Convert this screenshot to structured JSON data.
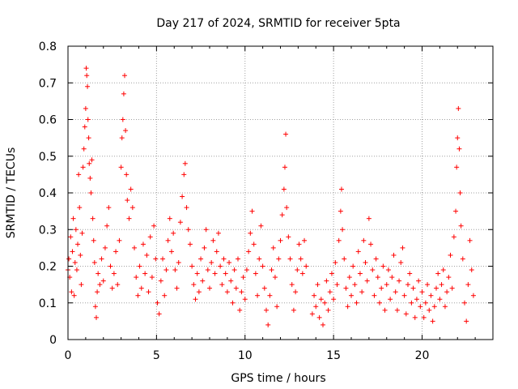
{
  "chart_data": {
    "type": "scatter",
    "title": "Day 217 of 2024, SRMTID for receiver 5pta",
    "xlabel": "GPS time / hours",
    "ylabel": "SRMTID / TECUs",
    "xlim": [
      0,
      24
    ],
    "ylim": [
      0,
      0.8
    ],
    "xticks": [
      0,
      5,
      10,
      15,
      20
    ],
    "xtick_labels": [
      "0",
      "5",
      "10",
      "15",
      "20"
    ],
    "yticks": [
      0,
      0.1,
      0.2,
      0.3,
      0.4,
      0.5,
      0.6,
      0.7,
      0.8
    ],
    "ytick_labels": [
      "0",
      "0.1",
      "0.2",
      "0.3",
      "0.4",
      "0.5",
      "0.6",
      "0.7",
      "0.8"
    ],
    "grid": true,
    "marker": "+",
    "color": "#ff0000",
    "series": [
      {
        "name": "SRMTID",
        "points": [
          [
            0.0,
            0.19
          ],
          [
            0.05,
            0.22
          ],
          [
            0.1,
            0.17
          ],
          [
            0.15,
            0.28
          ],
          [
            0.2,
            0.13
          ],
          [
            0.25,
            0.24
          ],
          [
            0.3,
            0.33
          ],
          [
            0.35,
            0.12
          ],
          [
            0.4,
            0.21
          ],
          [
            0.45,
            0.3
          ],
          [
            0.5,
            0.19
          ],
          [
            0.55,
            0.26
          ],
          [
            0.6,
            0.45
          ],
          [
            0.65,
            0.36
          ],
          [
            0.7,
            0.23
          ],
          [
            0.75,
            0.15
          ],
          [
            0.8,
            0.29
          ],
          [
            0.85,
            0.47
          ],
          [
            0.9,
            0.52
          ],
          [
            0.95,
            0.58
          ],
          [
            1.0,
            0.63
          ],
          [
            1.03,
            0.74
          ],
          [
            1.06,
            0.72
          ],
          [
            1.1,
            0.69
          ],
          [
            1.13,
            0.6
          ],
          [
            1.17,
            0.55
          ],
          [
            1.2,
            0.48
          ],
          [
            1.25,
            0.44
          ],
          [
            1.3,
            0.4
          ],
          [
            1.35,
            0.49
          ],
          [
            1.4,
            0.33
          ],
          [
            1.45,
            0.27
          ],
          [
            1.5,
            0.21
          ],
          [
            1.55,
            0.09
          ],
          [
            1.6,
            0.06
          ],
          [
            1.65,
            0.13
          ],
          [
            1.7,
            0.18
          ],
          [
            1.8,
            0.15
          ],
          [
            1.9,
            0.22
          ],
          [
            2.0,
            0.16
          ],
          [
            2.1,
            0.25
          ],
          [
            2.2,
            0.31
          ],
          [
            2.3,
            0.36
          ],
          [
            2.4,
            0.2
          ],
          [
            2.5,
            0.14
          ],
          [
            2.6,
            0.18
          ],
          [
            2.7,
            0.24
          ],
          [
            2.8,
            0.15
          ],
          [
            2.9,
            0.27
          ],
          [
            3.0,
            0.47
          ],
          [
            3.05,
            0.55
          ],
          [
            3.1,
            0.6
          ],
          [
            3.15,
            0.67
          ],
          [
            3.2,
            0.72
          ],
          [
            3.25,
            0.57
          ],
          [
            3.3,
            0.45
          ],
          [
            3.35,
            0.38
          ],
          [
            3.45,
            0.33
          ],
          [
            3.55,
            0.41
          ],
          [
            3.65,
            0.36
          ],
          [
            3.75,
            0.25
          ],
          [
            3.85,
            0.17
          ],
          [
            3.95,
            0.12
          ],
          [
            4.05,
            0.2
          ],
          [
            4.15,
            0.14
          ],
          [
            4.25,
            0.26
          ],
          [
            4.35,
            0.18
          ],
          [
            4.45,
            0.23
          ],
          [
            4.55,
            0.13
          ],
          [
            4.65,
            0.28
          ],
          [
            4.75,
            0.17
          ],
          [
            4.85,
            0.31
          ],
          [
            4.95,
            0.22
          ],
          [
            5.05,
            0.1
          ],
          [
            5.15,
            0.07
          ],
          [
            5.25,
            0.16
          ],
          [
            5.35,
            0.22
          ],
          [
            5.45,
            0.12
          ],
          [
            5.55,
            0.19
          ],
          [
            5.65,
            0.27
          ],
          [
            5.75,
            0.33
          ],
          [
            5.85,
            0.24
          ],
          [
            5.95,
            0.29
          ],
          [
            6.05,
            0.19
          ],
          [
            6.15,
            0.14
          ],
          [
            6.25,
            0.21
          ],
          [
            6.35,
            0.32
          ],
          [
            6.45,
            0.39
          ],
          [
            6.55,
            0.45
          ],
          [
            6.62,
            0.48
          ],
          [
            6.7,
            0.36
          ],
          [
            6.8,
            0.3
          ],
          [
            6.9,
            0.26
          ],
          [
            7.0,
            0.2
          ],
          [
            7.1,
            0.15
          ],
          [
            7.2,
            0.11
          ],
          [
            7.3,
            0.18
          ],
          [
            7.4,
            0.13
          ],
          [
            7.5,
            0.22
          ],
          [
            7.6,
            0.16
          ],
          [
            7.7,
            0.25
          ],
          [
            7.8,
            0.3
          ],
          [
            7.9,
            0.19
          ],
          [
            8.0,
            0.14
          ],
          [
            8.1,
            0.21
          ],
          [
            8.2,
            0.27
          ],
          [
            8.3,
            0.18
          ],
          [
            8.4,
            0.24
          ],
          [
            8.5,
            0.29
          ],
          [
            8.6,
            0.2
          ],
          [
            8.7,
            0.15
          ],
          [
            8.8,
            0.22
          ],
          [
            8.9,
            0.18
          ],
          [
            9.0,
            0.13
          ],
          [
            9.1,
            0.21
          ],
          [
            9.2,
            0.16
          ],
          [
            9.3,
            0.1
          ],
          [
            9.4,
            0.19
          ],
          [
            9.5,
            0.14
          ],
          [
            9.6,
            0.22
          ],
          [
            9.7,
            0.08
          ],
          [
            9.8,
            0.13
          ],
          [
            9.9,
            0.17
          ],
          [
            10.0,
            0.11
          ],
          [
            10.1,
            0.19
          ],
          [
            10.2,
            0.24
          ],
          [
            10.3,
            0.29
          ],
          [
            10.4,
            0.35
          ],
          [
            10.5,
            0.26
          ],
          [
            10.6,
            0.18
          ],
          [
            10.7,
            0.12
          ],
          [
            10.8,
            0.22
          ],
          [
            10.9,
            0.31
          ],
          [
            11.0,
            0.2
          ],
          [
            11.1,
            0.14
          ],
          [
            11.2,
            0.08
          ],
          [
            11.3,
            0.04
          ],
          [
            11.4,
            0.12
          ],
          [
            11.5,
            0.19
          ],
          [
            11.6,
            0.25
          ],
          [
            11.7,
            0.17
          ],
          [
            11.8,
            0.09
          ],
          [
            11.9,
            0.22
          ],
          [
            12.0,
            0.27
          ],
          [
            12.1,
            0.34
          ],
          [
            12.2,
            0.41
          ],
          [
            12.25,
            0.47
          ],
          [
            12.3,
            0.56
          ],
          [
            12.35,
            0.36
          ],
          [
            12.45,
            0.28
          ],
          [
            12.55,
            0.22
          ],
          [
            12.65,
            0.15
          ],
          [
            12.75,
            0.08
          ],
          [
            12.85,
            0.13
          ],
          [
            12.95,
            0.19
          ],
          [
            13.05,
            0.26
          ],
          [
            13.15,
            0.22
          ],
          [
            13.25,
            0.18
          ],
          [
            13.35,
            0.27
          ],
          [
            13.45,
            0.2
          ],
          [
            13.8,
            0.07
          ],
          [
            13.9,
            0.12
          ],
          [
            14.0,
            0.09
          ],
          [
            14.1,
            0.15
          ],
          [
            14.2,
            0.06
          ],
          [
            14.3,
            0.11
          ],
          [
            14.4,
            0.04
          ],
          [
            14.5,
            0.1
          ],
          [
            14.6,
            0.16
          ],
          [
            14.7,
            0.08
          ],
          [
            14.8,
            0.13
          ],
          [
            14.9,
            0.18
          ],
          [
            15.0,
            0.11
          ],
          [
            15.1,
            0.21
          ],
          [
            15.2,
            0.15
          ],
          [
            15.3,
            0.27
          ],
          [
            15.4,
            0.35
          ],
          [
            15.45,
            0.41
          ],
          [
            15.5,
            0.3
          ],
          [
            15.6,
            0.22
          ],
          [
            15.7,
            0.14
          ],
          [
            15.8,
            0.09
          ],
          [
            15.9,
            0.17
          ],
          [
            16.0,
            0.12
          ],
          [
            16.1,
            0.2
          ],
          [
            16.2,
            0.15
          ],
          [
            16.3,
            0.1
          ],
          [
            16.4,
            0.24
          ],
          [
            16.5,
            0.18
          ],
          [
            16.6,
            0.13
          ],
          [
            16.7,
            0.27
          ],
          [
            16.8,
            0.21
          ],
          [
            16.9,
            0.16
          ],
          [
            17.0,
            0.33
          ],
          [
            17.1,
            0.26
          ],
          [
            17.2,
            0.19
          ],
          [
            17.3,
            0.12
          ],
          [
            17.4,
            0.22
          ],
          [
            17.5,
            0.17
          ],
          [
            17.6,
            0.1
          ],
          [
            17.7,
            0.14
          ],
          [
            17.8,
            0.2
          ],
          [
            17.9,
            0.08
          ],
          [
            18.0,
            0.15
          ],
          [
            18.1,
            0.19
          ],
          [
            18.2,
            0.11
          ],
          [
            18.3,
            0.17
          ],
          [
            18.4,
            0.23
          ],
          [
            18.5,
            0.13
          ],
          [
            18.6,
            0.08
          ],
          [
            18.7,
            0.16
          ],
          [
            18.8,
            0.21
          ],
          [
            18.9,
            0.25
          ],
          [
            19.0,
            0.12
          ],
          [
            19.1,
            0.07
          ],
          [
            19.2,
            0.15
          ],
          [
            19.3,
            0.18
          ],
          [
            19.4,
            0.1
          ],
          [
            19.5,
            0.14
          ],
          [
            19.6,
            0.06
          ],
          [
            19.7,
            0.11
          ],
          [
            19.8,
            0.16
          ],
          [
            19.9,
            0.09
          ],
          [
            20.0,
            0.13
          ],
          [
            20.1,
            0.06
          ],
          [
            20.2,
            0.1
          ],
          [
            20.3,
            0.15
          ],
          [
            20.4,
            0.08
          ],
          [
            20.5,
            0.12
          ],
          [
            20.6,
            0.05
          ],
          [
            20.7,
            0.09
          ],
          [
            20.8,
            0.14
          ],
          [
            20.9,
            0.18
          ],
          [
            21.0,
            0.11
          ],
          [
            21.1,
            0.15
          ],
          [
            21.2,
            0.19
          ],
          [
            21.3,
            0.09
          ],
          [
            21.4,
            0.13
          ],
          [
            21.5,
            0.17
          ],
          [
            21.6,
            0.23
          ],
          [
            21.7,
            0.14
          ],
          [
            21.8,
            0.28
          ],
          [
            21.9,
            0.35
          ],
          [
            21.95,
            0.47
          ],
          [
            22.0,
            0.55
          ],
          [
            22.05,
            0.63
          ],
          [
            22.1,
            0.52
          ],
          [
            22.15,
            0.4
          ],
          [
            22.2,
            0.31
          ],
          [
            22.3,
            0.22
          ],
          [
            22.4,
            0.1
          ],
          [
            22.5,
            0.05
          ],
          [
            22.6,
            0.15
          ],
          [
            22.7,
            0.27
          ],
          [
            22.8,
            0.19
          ],
          [
            22.9,
            0.12
          ]
        ]
      }
    ]
  }
}
